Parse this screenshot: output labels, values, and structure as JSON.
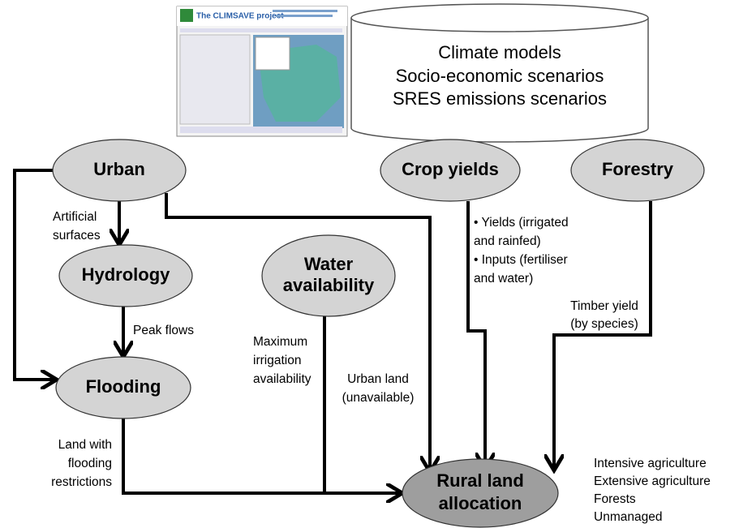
{
  "screenshot": {
    "title": "The CLIMSAVE project"
  },
  "drivers": {
    "lines": [
      "Climate models",
      "Socio-economic scenarios",
      "SRES emissions scenarios"
    ]
  },
  "nodes": [
    {
      "label": [
        "Urban"
      ]
    },
    {
      "label": [
        "Crop yields"
      ]
    },
    {
      "label": [
        "Forestry"
      ]
    },
    {
      "label": [
        "Hydrology"
      ]
    },
    {
      "label": [
        "Water",
        "availability"
      ]
    },
    {
      "label": [
        "Flooding"
      ]
    },
    {
      "label": [
        "Rural land",
        "allocation"
      ]
    }
  ],
  "edge_labels": [
    {
      "lines": [
        "Artificial",
        "surfaces"
      ]
    },
    {
      "lines": [
        "Peak flows"
      ]
    },
    {
      "lines": [
        "Maximum",
        "irrigation",
        "availability"
      ]
    },
    {
      "lines": [
        "Urban land",
        "(unavailable)"
      ]
    },
    {
      "lines": [
        "• Yields (irrigated",
        "and rainfed)",
        "• Inputs (fertiliser",
        "and water)"
      ]
    },
    {
      "lines": [
        "Timber yield",
        "(by species)"
      ]
    },
    {
      "lines": [
        "Land with",
        "flooding",
        "restrictions"
      ]
    }
  ],
  "outputs": [
    "Intensive agriculture",
    "Extensive agriculture",
    "Forests",
    "Unmanaged"
  ]
}
